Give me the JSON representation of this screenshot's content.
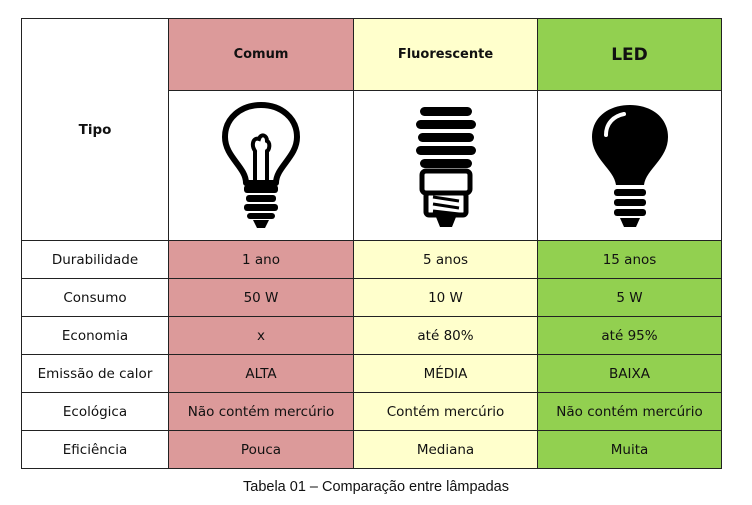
{
  "table": {
    "header_label": "Tipo",
    "columns": [
      {
        "name": "Comum",
        "color": "#dc9a9a",
        "icon": "incandescent-bulb-icon"
      },
      {
        "name": "Fluorescente",
        "color": "#ffffcc",
        "icon": "fluorescent-bulb-icon"
      },
      {
        "name": "LED",
        "color": "#92d050",
        "icon": "led-bulb-icon"
      }
    ],
    "rows": [
      {
        "label": "Durabilidade",
        "values": [
          "1 ano",
          "5 anos",
          "15 anos"
        ]
      },
      {
        "label": "Consumo",
        "values": [
          "50 W",
          "10 W",
          "5 W"
        ]
      },
      {
        "label": "Economia",
        "values": [
          "x",
          "até 80%",
          "até 95%"
        ]
      },
      {
        "label": "Emissão de calor",
        "values": [
          "ALTA",
          "MÉDIA",
          "BAIXA"
        ]
      },
      {
        "label": "Ecológica",
        "values": [
          "Não contém mercúrio",
          "Contém mercúrio",
          "Não contém mercúrio"
        ]
      },
      {
        "label": "Eficiência",
        "values": [
          "Pouca",
          "Mediana",
          "Muita"
        ]
      }
    ]
  },
  "caption": "Tabela 01 – Comparação entre lâmpadas"
}
